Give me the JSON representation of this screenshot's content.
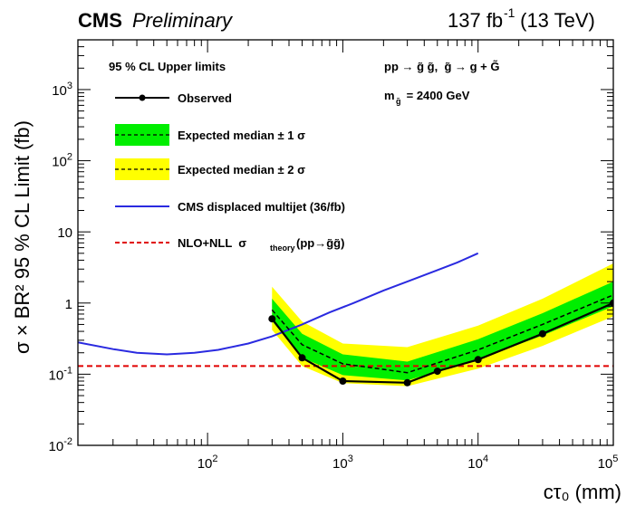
{
  "header": {
    "experiment": "CMS",
    "status": "Preliminary",
    "lumi": "137 fb",
    "lumi_exp": "-1",
    "energy": " (13 TeV)"
  },
  "colors": {
    "green_band": "#00ee00",
    "yellow_band": "#ffff00",
    "displaced": "#2a2ae0",
    "theory": "#e00000",
    "observed": "#000000"
  },
  "chart_data": {
    "type": "line",
    "xscale": "log",
    "yscale": "log",
    "xlim": [
      11,
      100000
    ],
    "ylim": [
      0.01,
      5000
    ],
    "xlabel": "cτ₀ (mm)",
    "ylabel": "σ × BR² 95 % CL Limit (fb)",
    "xticks": [
      {
        "v": 100,
        "m": "10",
        "e": "2"
      },
      {
        "v": 1000,
        "m": "10",
        "e": "3"
      },
      {
        "v": 10000,
        "m": "10",
        "e": "4"
      },
      {
        "v": 100000,
        "m": "10",
        "e": "5"
      }
    ],
    "yticks": [
      {
        "v": 0.01,
        "m": "10",
        "e": "-2"
      },
      {
        "v": 0.1,
        "m": "10",
        "e": "-1"
      },
      {
        "v": 1,
        "m": "1",
        "e": ""
      },
      {
        "v": 10,
        "m": "10",
        "e": ""
      },
      {
        "v": 100,
        "m": "10",
        "e": "2"
      },
      {
        "v": 1000,
        "m": "10",
        "e": "3"
      }
    ],
    "legend_title": "95 % CL Upper limits",
    "process": {
      "lead": "pp → ",
      "sq": "g̃ g̃,  g̃ → g + G̃"
    },
    "mass": {
      "m": "m",
      "sub": "g̃",
      "rest": " = 2400 GeV"
    },
    "legend": [
      {
        "key": "observed",
        "label": "Observed"
      },
      {
        "key": "one_sigma",
        "label": "Expected median ± 1 σ"
      },
      {
        "key": "two_sigma",
        "label": "Expected median ± 2 σ"
      },
      {
        "key": "displaced",
        "label": "CMS displaced multijet (36/fb)"
      },
      {
        "key": "theory",
        "label": "NLO+NLL  σ",
        "sub": "theory",
        "tail": "(pp→g̃g̃)"
      }
    ],
    "series": [
      {
        "name": "Observed",
        "x": [
          300,
          500,
          1000,
          3000,
          5000,
          10000,
          30000,
          100000
        ],
        "y": [
          0.6,
          0.17,
          0.08,
          0.076,
          0.11,
          0.16,
          0.37,
          1.0
        ]
      },
      {
        "name": "Expected median",
        "x": [
          300,
          500,
          1000,
          3000,
          10000,
          30000,
          100000
        ],
        "y": [
          0.8,
          0.26,
          0.14,
          0.105,
          0.22,
          0.5,
          1.3
        ]
      },
      {
        "name": "Expected median ± 1 σ",
        "x": [
          300,
          500,
          1000,
          3000,
          10000,
          30000,
          100000
        ],
        "low": [
          0.56,
          0.17,
          0.097,
          0.082,
          0.16,
          0.35,
          0.9
        ],
        "high": [
          1.15,
          0.37,
          0.19,
          0.15,
          0.31,
          0.72,
          2.0
        ]
      },
      {
        "name": "Expected median ± 2 σ",
        "x": [
          300,
          500,
          1000,
          3000,
          10000,
          30000,
          100000
        ],
        "low": [
          0.42,
          0.13,
          0.075,
          0.068,
          0.12,
          0.25,
          0.65
        ],
        "high": [
          1.7,
          0.55,
          0.27,
          0.24,
          0.48,
          1.15,
          3.6
        ]
      },
      {
        "name": "CMS displaced multijet (36/fb)",
        "x": [
          11,
          20,
          30,
          50,
          80,
          120,
          200,
          300,
          500,
          800,
          1200,
          2000,
          3000,
          5000,
          7000,
          10000
        ],
        "y": [
          0.28,
          0.225,
          0.2,
          0.19,
          0.2,
          0.22,
          0.27,
          0.34,
          0.5,
          0.74,
          1.0,
          1.5,
          2.0,
          2.9,
          3.7,
          5.0
        ]
      },
      {
        "name": "NLO+NLL σ theory",
        "x": [
          11,
          100000
        ],
        "y": [
          0.13,
          0.13
        ]
      }
    ]
  }
}
